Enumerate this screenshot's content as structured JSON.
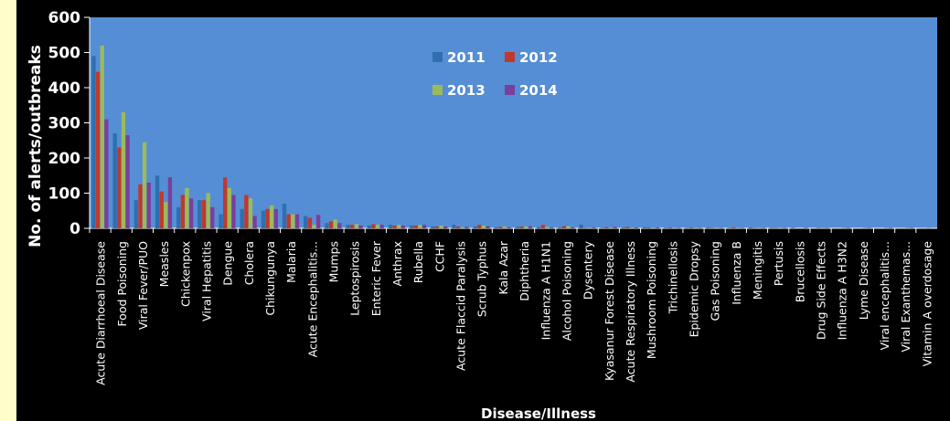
{
  "colors": {
    "background": "#000000",
    "plot_area": "#558ed5",
    "left_strip": "#ffffcc",
    "text": "#ffffff",
    "series": [
      "#2f6fb0",
      "#c0392b",
      "#9bbb59",
      "#7a3f9d"
    ]
  },
  "chart_data": {
    "type": "bar",
    "xlabel": "Disease/Illness",
    "ylabel": "No. of alerts/outbreaks",
    "ylim": [
      0,
      600
    ],
    "yticks": [
      0,
      100,
      200,
      300,
      400,
      500,
      600
    ],
    "grid": false,
    "legend_position": "top-center",
    "categories": [
      "Acute Diarrhoeal Disease",
      "Food Poisoning",
      "Viral Fever/PUO",
      "Measles",
      "Chickenpox",
      "Viral Hepatitis",
      "Dengue",
      "Cholera",
      "Chikungunya",
      "Malaria",
      "Acute Encephalitis...",
      "Mumps",
      "Leptospirosis",
      "Enteric Fever",
      "Anthrax",
      "Rubella",
      "CCHF",
      "Acute Flaccid Paralysis",
      "Scrub Typhus",
      "Kala Azar",
      "Diphtheria",
      "Influenza A H1N1",
      "Alcohol Poisoning",
      "Dysentery",
      "Kyasanur Forest Disease",
      "Acute Respiratory Illness",
      "Mushroom Poisoning",
      "Trichinellosis",
      "Epidemic Dropsy",
      "Gas Poisoning",
      "Influenza B",
      "Meningitis",
      "Pertusis",
      "Brucellosis",
      "Drug Side Effects",
      "Influenza A H3N2",
      "Lyme Disease",
      "Viral encephalitis...",
      "Viral Exanthemas...",
      "Vitamin A overdosage"
    ],
    "series": [
      {
        "name": "2011",
        "values": [
          490,
          270,
          80,
          150,
          60,
          80,
          40,
          55,
          50,
          70,
          35,
          15,
          10,
          8,
          10,
          8,
          5,
          10,
          5,
          3,
          4,
          3,
          2,
          10,
          1,
          2,
          3,
          1,
          1,
          2,
          1,
          2,
          1,
          1,
          0,
          0,
          0,
          0,
          0,
          0
        ]
      },
      {
        "name": "2012",
        "values": [
          445,
          230,
          125,
          105,
          95,
          80,
          145,
          95,
          55,
          40,
          30,
          20,
          10,
          12,
          8,
          8,
          5,
          5,
          10,
          4,
          5,
          10,
          6,
          1,
          3,
          4,
          2,
          2,
          2,
          1,
          3,
          1,
          1,
          0,
          1,
          0,
          0,
          0,
          0,
          0
        ]
      },
      {
        "name": "2013",
        "values": [
          520,
          330,
          245,
          75,
          115,
          100,
          115,
          85,
          65,
          40,
          10,
          25,
          12,
          10,
          10,
          10,
          8,
          3,
          8,
          5,
          5,
          4,
          6,
          1,
          2,
          2,
          1,
          1,
          2,
          1,
          1,
          1,
          1,
          0,
          1,
          1,
          1,
          1,
          1,
          1
        ]
      },
      {
        "name": "2014",
        "values": [
          310,
          265,
          130,
          145,
          85,
          60,
          95,
          35,
          55,
          40,
          38,
          15,
          8,
          10,
          8,
          10,
          5,
          4,
          6,
          3,
          6,
          2,
          3,
          2,
          4,
          2,
          2,
          1,
          1,
          1,
          1,
          1,
          1,
          1,
          1,
          1,
          1,
          1,
          1,
          0
        ]
      }
    ]
  }
}
